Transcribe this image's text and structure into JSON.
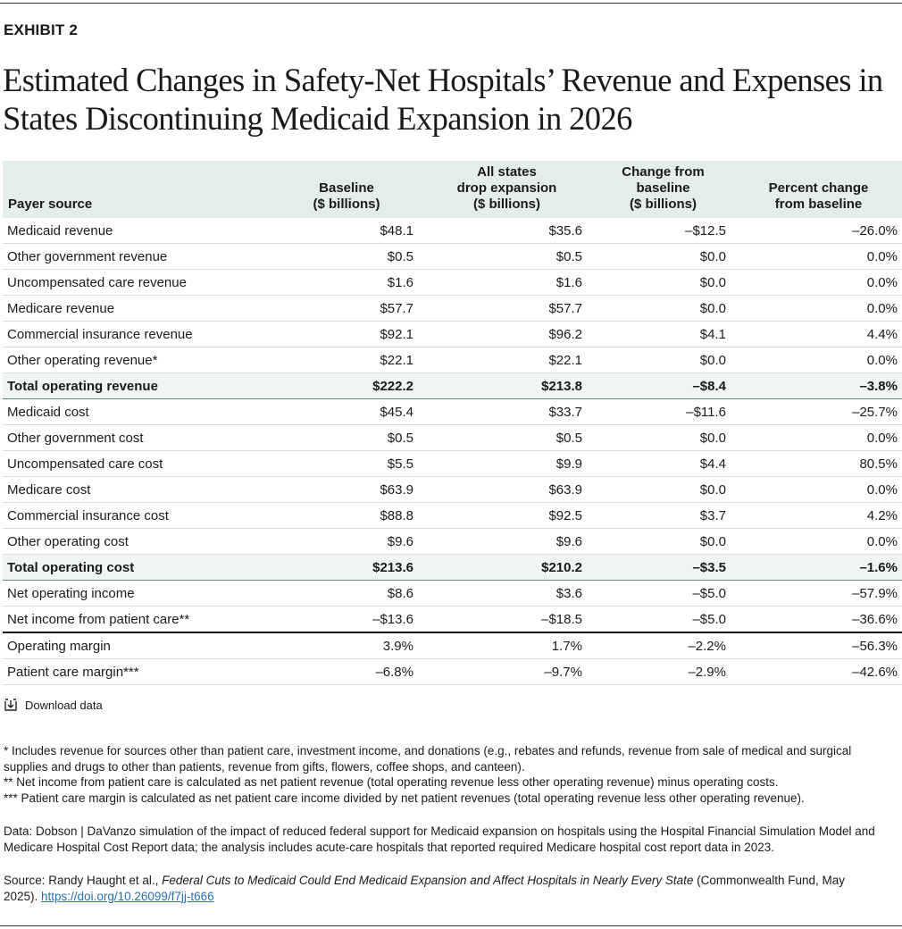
{
  "exhibit": "EXHIBIT 2",
  "title": "Estimated Changes in Safety-Net Hospitals’ Revenue and Expenses in States Discontinuing Medicaid Expansion in 2026",
  "table": {
    "header": [
      [
        "Payer source"
      ],
      [
        "Baseline",
        "($ billions)"
      ],
      [
        "All states",
        "drop expansion",
        "($ billions)"
      ],
      [
        "Change from",
        "baseline",
        "($ billions)"
      ],
      [
        "Percent change",
        "from baseline"
      ]
    ],
    "rows": [
      {
        "cells": [
          "Medicaid revenue",
          "$48.1",
          "$35.6",
          "–$12.5",
          "–26.0%"
        ]
      },
      {
        "cells": [
          "Other government revenue",
          "$0.5",
          "$0.5",
          "$0.0",
          "0.0%"
        ]
      },
      {
        "cells": [
          "Uncompensated care revenue",
          "$1.6",
          "$1.6",
          "$0.0",
          "0.0%"
        ]
      },
      {
        "cells": [
          "Medicare revenue",
          "$57.7",
          "$57.7",
          "$0.0",
          "0.0%"
        ]
      },
      {
        "cells": [
          "Commercial insurance revenue",
          "$92.1",
          "$96.2",
          "$4.1",
          "4.4%"
        ]
      },
      {
        "cells": [
          "Other operating revenue*",
          "$22.1",
          "$22.1",
          "$0.0",
          "0.0%"
        ]
      },
      {
        "cells": [
          "Total operating revenue",
          "$222.2",
          "$213.8",
          "–$8.4",
          "–3.8%"
        ],
        "style": "total"
      },
      {
        "cells": [
          "Medicaid cost",
          "$45.4",
          "$33.7",
          "–$11.6",
          "–25.7%"
        ]
      },
      {
        "cells": [
          "Other government cost",
          "$0.5",
          "$0.5",
          "$0.0",
          "0.0%"
        ]
      },
      {
        "cells": [
          "Uncompensated care cost",
          "$5.5",
          "$9.9",
          "$4.4",
          "80.5%"
        ]
      },
      {
        "cells": [
          "Medicare cost",
          "$63.9",
          "$63.9",
          "$0.0",
          "0.0%"
        ]
      },
      {
        "cells": [
          "Commercial insurance cost",
          "$88.8",
          "$92.5",
          "$3.7",
          "4.2%"
        ]
      },
      {
        "cells": [
          "Other operating cost",
          "$9.6",
          "$9.6",
          "$0.0",
          "0.0%"
        ]
      },
      {
        "cells": [
          "Total operating cost",
          "$213.6",
          "$210.2",
          "–$3.5",
          "–1.6%"
        ],
        "style": "total"
      },
      {
        "cells": [
          "Net operating income",
          "$8.6",
          "$3.6",
          "–$5.0",
          "–57.9%"
        ]
      },
      {
        "cells": [
          "Net income from patient care**",
          "–$13.6",
          "–$18.5",
          "–$5.0",
          "–36.6%"
        ]
      },
      {
        "cells": [
          "Operating margin",
          "3.9%",
          "1.7%",
          "–2.2%",
          "–56.3%"
        ],
        "style": "divider"
      },
      {
        "cells": [
          "Patient care margin***",
          "–6.8%",
          "–9.7%",
          "–2.9%",
          "–42.6%"
        ]
      }
    ]
  },
  "download": "Download data",
  "notes": [
    "* Includes revenue for sources other than patient care, investment income, and donations (e.g., rebates and refunds, revenue from sale of medical and surgical supplies and drugs to other than patients, revenue from gifts, flowers, coffee shops, and canteen).",
    "** Net income from patient care is calculated as net patient revenue (total operating revenue less other operating revenue) minus operating costs.",
    "*** Patient care margin is calculated as net patient care income divided by net patient revenues (total operating revenue less other operating revenue)."
  ],
  "data_note": "Data: Dobson | DaVanzo simulation of the impact of reduced federal support for Medicaid expansion on hospitals using the Hospital Financial Simulation Model and Medicare Hospital Cost Report data; the analysis includes acute-care hospitals that reported required Medicare hospital cost report data in 2023.",
  "source": {
    "prefix": "Source: Randy Haught et al., ",
    "title": "Federal Cuts to Medicaid Could End Medicaid Expansion and Affect Hospitals in Nearly Every State",
    "suffix": " (Commonwealth Fund, May 2025). ",
    "link": "https://doi.org/10.26099/f7jj-t666"
  }
}
